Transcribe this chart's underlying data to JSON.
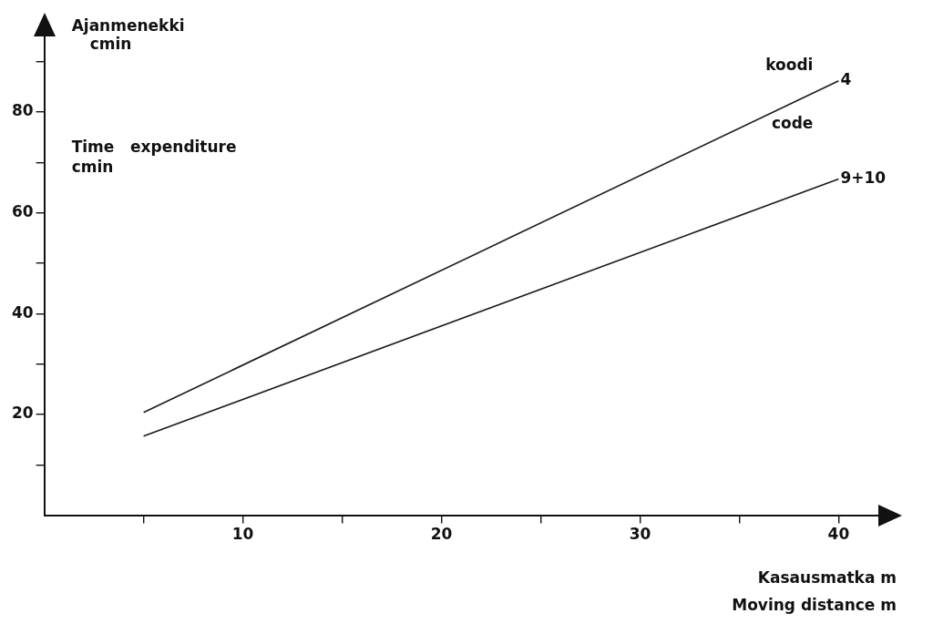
{
  "chart_data": {
    "type": "line",
    "ylabel": "Ajanmenekki cmin",
    "xlabel": "Kasausmatka m",
    "annotations": [
      "koodi",
      "code",
      "Time expenditure cmin",
      "Moving distance m"
    ],
    "x": [
      5,
      40
    ],
    "series": [
      {
        "name": "4",
        "color": "#1a1a1a",
        "values": [
          20.4,
          86.2
        ]
      },
      {
        "name": "9+10",
        "color": "#1a1a1a",
        "values": [
          15.7,
          66.7
        ]
      }
    ],
    "xlim": [
      0,
      42
    ],
    "ylim": [
      0,
      95
    ],
    "xticks": [
      {
        "value": 5,
        "label": null
      },
      10,
      {
        "value": 15,
        "label": null
      },
      20,
      {
        "value": 25,
        "label": null
      },
      30,
      {
        "value": 35,
        "label": null
      },
      40
    ],
    "yticks": [
      {
        "value": 10,
        "label": null
      },
      20,
      {
        "value": 30,
        "label": null
      },
      40,
      {
        "value": 50,
        "label": null
      },
      60,
      {
        "value": 70,
        "label": null
      },
      80,
      {
        "value": 90,
        "label": null
      }
    ],
    "grid": false,
    "legend": false,
    "marker": "none",
    "line_style": "solid"
  }
}
